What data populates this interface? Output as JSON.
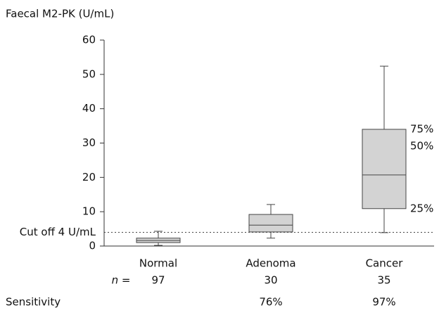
{
  "chart_data": {
    "type": "box",
    "y_label": "Faecal M2-PK (U/mL)",
    "categories": [
      "Normal",
      "Adenoma",
      "Cancer"
    ],
    "min": [
      0.2,
      2.3,
      3.9
    ],
    "q1": [
      1.0,
      4.1,
      10.9
    ],
    "median": [
      1.6,
      6.1,
      20.7
    ],
    "q3": [
      2.3,
      9.2,
      34
    ],
    "max": [
      4.3,
      12.1,
      52.4
    ],
    "color": "#d3d3d3",
    "ylim": [
      0,
      60
    ],
    "yticks": [
      0,
      10,
      20,
      30,
      40,
      50,
      60
    ],
    "cutoff": {
      "value": 4,
      "label": "Cut off 4 U/mL"
    },
    "percentile_labels": [
      "75%",
      "50%",
      "25%"
    ],
    "n_label": "n =",
    "n": [
      "97",
      "30",
      "35"
    ],
    "sensitivity_label": "Sensitivity",
    "sensitivity": [
      null,
      "76%",
      "97%"
    ]
  }
}
